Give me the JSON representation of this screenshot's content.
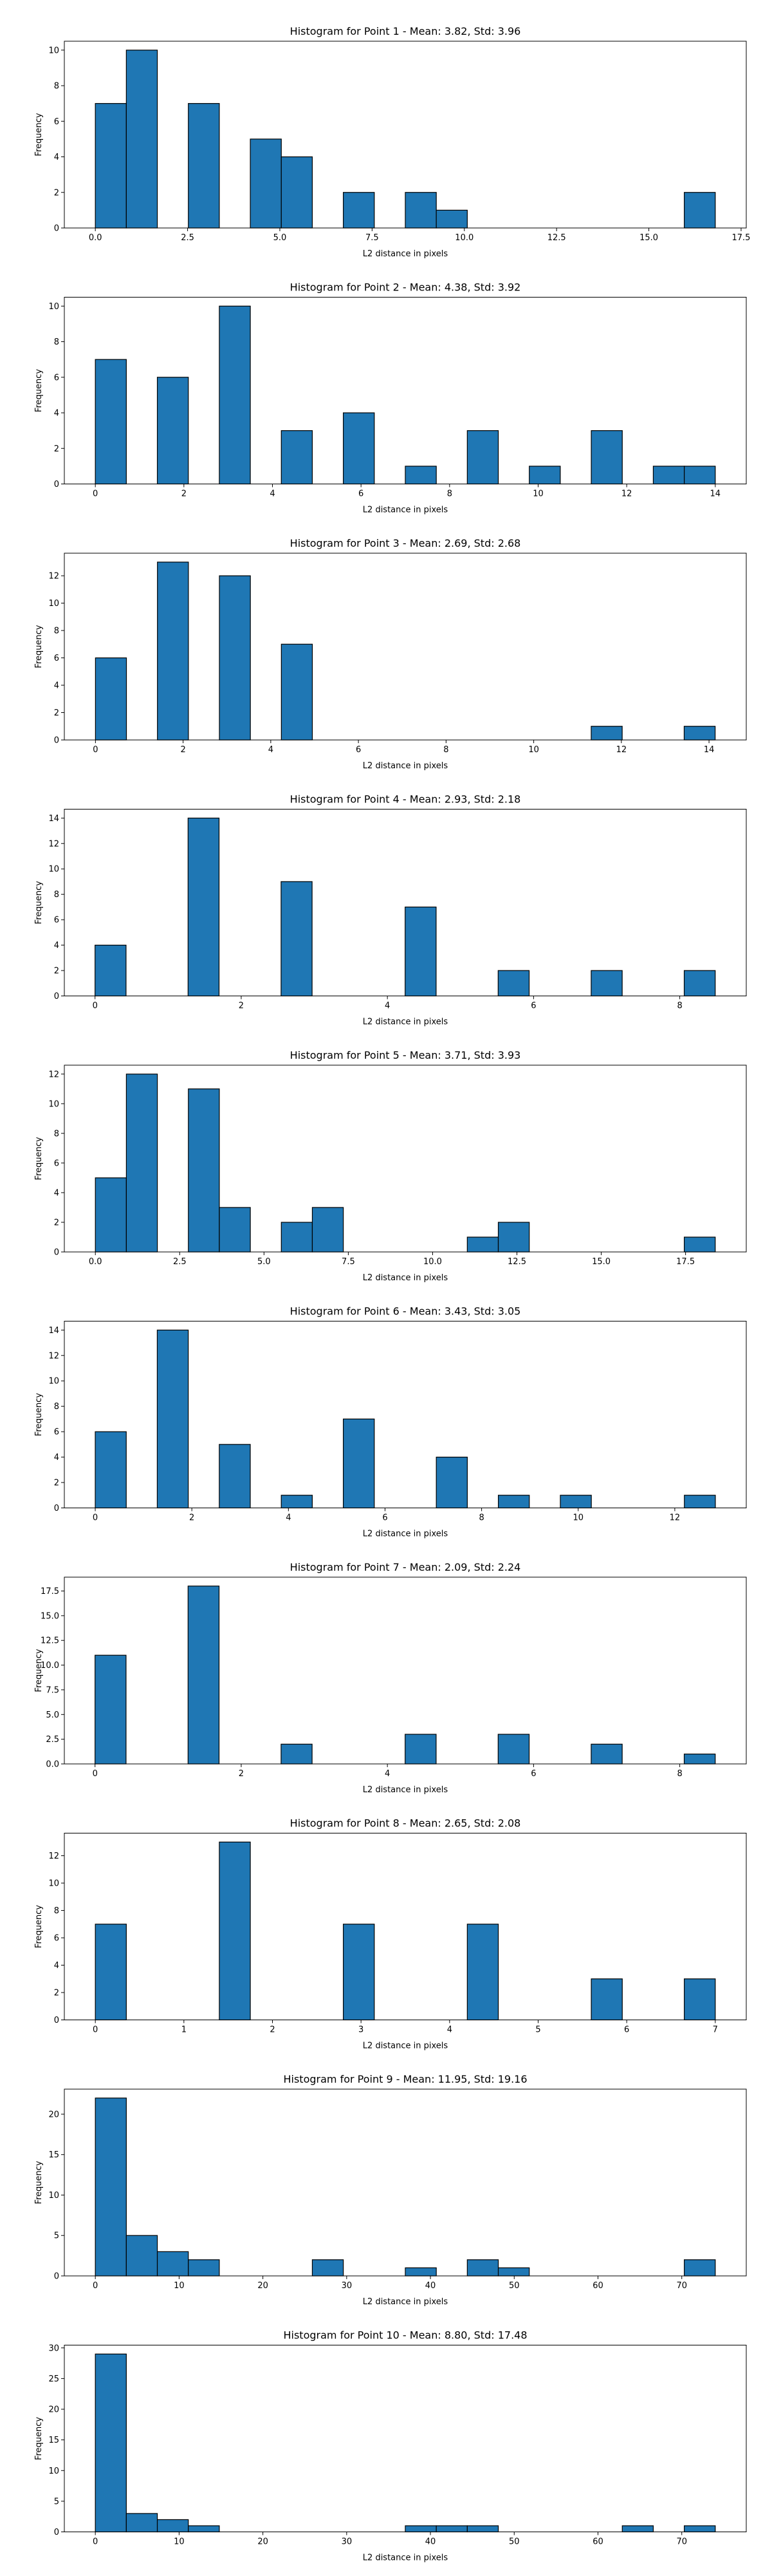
{
  "figure": {
    "background": "#ffffff",
    "bar_color": "#1f77b4",
    "edge_color": "#000000"
  },
  "chart_data": [
    {
      "type": "bar",
      "title": "Histogram for Point 1 - Mean: 3.82, Std: 3.96",
      "xlabel": "L2 distance in pixels",
      "ylabel": "Frequency",
      "xlim": [
        -0.84,
        17.64
      ],
      "ylim": [
        0,
        10.5
      ],
      "xticks": [
        0,
        2.5,
        5,
        7.5,
        10,
        12.5,
        15,
        17.5
      ],
      "xtick_labels": [
        "0.0",
        "2.5",
        "5.0",
        "7.5",
        "10.0",
        "12.5",
        "15.0",
        "17.5"
      ],
      "yticks": [
        0,
        2,
        4,
        6,
        8,
        10
      ],
      "bin_edges": [
        0,
        0.84,
        1.68,
        2.52,
        3.36,
        4.2,
        5.04,
        5.88,
        6.72,
        7.56,
        8.4,
        9.24,
        10.08,
        10.92,
        11.76,
        12.6,
        13.44,
        14.28,
        15.12,
        15.96,
        16.8
      ],
      "counts": [
        7,
        10,
        0,
        7,
        0,
        5,
        4,
        0,
        2,
        0,
        2,
        1,
        0,
        0,
        0,
        0,
        0,
        0,
        0,
        2
      ]
    },
    {
      "type": "bar",
      "title": "Histogram for Point 2 - Mean: 4.38, Std: 3.92",
      "xlabel": "L2 distance in pixels",
      "ylabel": "Frequency",
      "xlim": [
        -0.7,
        14.7
      ],
      "ylim": [
        0,
        10.5
      ],
      "xticks": [
        0,
        2,
        4,
        6,
        8,
        10,
        12,
        14
      ],
      "xtick_labels": [
        "0",
        "2",
        "4",
        "6",
        "8",
        "10",
        "12",
        "14"
      ],
      "yticks": [
        0,
        2,
        4,
        6,
        8,
        10
      ],
      "bin_edges": [
        0,
        0.7,
        1.4,
        2.1,
        2.8,
        3.5,
        4.2,
        4.9,
        5.6,
        6.3,
        7,
        7.7,
        8.4,
        9.1,
        9.8,
        10.5,
        11.2,
        11.9,
        12.6,
        13.3,
        14
      ],
      "counts": [
        7,
        0,
        6,
        0,
        10,
        0,
        3,
        0,
        4,
        0,
        1,
        0,
        3,
        0,
        1,
        0,
        3,
        0,
        1,
        1
      ]
    },
    {
      "type": "bar",
      "title": "Histogram for Point 3 - Mean: 2.69, Std: 2.68",
      "xlabel": "L2 distance in pixels",
      "ylabel": "Frequency",
      "xlim": [
        -0.71,
        14.85
      ],
      "ylim": [
        0,
        13.65
      ],
      "xticks": [
        0,
        2,
        4,
        6,
        8,
        10,
        12,
        14
      ],
      "xtick_labels": [
        "0",
        "2",
        "4",
        "6",
        "8",
        "10",
        "12",
        "14"
      ],
      "yticks": [
        0,
        2,
        4,
        6,
        8,
        10,
        12
      ],
      "bin_edges": [
        0,
        0.707,
        1.414,
        2.121,
        2.828,
        3.535,
        4.242,
        4.949,
        5.656,
        6.363,
        7.07,
        7.777,
        8.484,
        9.191,
        9.898,
        10.605,
        11.312,
        12.019,
        12.726,
        13.433,
        14.14
      ],
      "counts": [
        6,
        0,
        13,
        0,
        12,
        0,
        7,
        0,
        0,
        0,
        0,
        0,
        0,
        0,
        0,
        0,
        1,
        0,
        0,
        1
      ]
    },
    {
      "type": "bar",
      "title": "Histogram for Point 4 - Mean: 2.93, Std: 2.18",
      "xlabel": "L2 distance in pixels",
      "ylabel": "Frequency",
      "xlim": [
        -0.42,
        8.91
      ],
      "ylim": [
        0,
        14.7
      ],
      "xticks": [
        0,
        2,
        4,
        6,
        8
      ],
      "xtick_labels": [
        "0",
        "2",
        "4",
        "6",
        "8"
      ],
      "yticks": [
        0,
        2,
        4,
        6,
        8,
        10,
        12,
        14
      ],
      "bin_edges": [
        0,
        0.4243,
        0.8485,
        1.2728,
        1.697,
        2.1213,
        2.5456,
        2.9698,
        3.3941,
        3.8184,
        4.2426,
        4.6669,
        5.0912,
        5.5154,
        5.9397,
        6.364,
        6.7882,
        7.2125,
        7.6368,
        8.061,
        8.4853
      ],
      "counts": [
        4,
        0,
        0,
        14,
        0,
        0,
        9,
        0,
        0,
        0,
        7,
        0,
        0,
        2,
        0,
        0,
        2,
        0,
        0,
        2
      ]
    },
    {
      "type": "bar",
      "title": "Histogram for Point 5 - Mean: 3.71, Std: 3.93",
      "xlabel": "L2 distance in pixels",
      "ylabel": "Frequency",
      "xlim": [
        -0.92,
        19.3
      ],
      "ylim": [
        0,
        12.6
      ],
      "xticks": [
        0,
        2.5,
        5,
        7.5,
        10,
        12.5,
        15,
        17.5
      ],
      "xtick_labels": [
        "0.0",
        "2.5",
        "5.0",
        "7.5",
        "10.0",
        "12.5",
        "15.0",
        "17.5"
      ],
      "yticks": [
        0,
        2,
        4,
        6,
        8,
        10,
        12
      ],
      "bin_edges": [
        0,
        0.919,
        1.838,
        2.757,
        3.676,
        4.595,
        5.514,
        6.433,
        7.352,
        8.271,
        9.19,
        10.109,
        11.028,
        11.947,
        12.866,
        13.785,
        14.704,
        15.623,
        16.542,
        17.461,
        18.38
      ],
      "counts": [
        5,
        12,
        0,
        11,
        3,
        0,
        2,
        3,
        0,
        0,
        0,
        0,
        1,
        2,
        0,
        0,
        0,
        0,
        0,
        1
      ]
    },
    {
      "type": "bar",
      "title": "Histogram for Point 6 - Mean: 3.43, Std: 3.05",
      "xlabel": "L2 distance in pixels",
      "ylabel": "Frequency",
      "xlim": [
        -0.64,
        13.48
      ],
      "ylim": [
        0,
        14.7
      ],
      "xticks": [
        0,
        2,
        4,
        6,
        8,
        10,
        12
      ],
      "xtick_labels": [
        "0",
        "2",
        "4",
        "6",
        "8",
        "10",
        "12"
      ],
      "yticks": [
        0,
        2,
        4,
        6,
        8,
        10,
        12,
        14
      ],
      "bin_edges": [
        0,
        0.642,
        1.284,
        1.926,
        2.568,
        3.21,
        3.852,
        4.494,
        5.136,
        5.778,
        6.42,
        7.062,
        7.704,
        8.346,
        8.988,
        9.63,
        10.272,
        10.914,
        11.556,
        12.198,
        12.84
      ],
      "counts": [
        6,
        0,
        14,
        0,
        5,
        0,
        1,
        0,
        7,
        0,
        0,
        4,
        0,
        1,
        0,
        1,
        0,
        0,
        0,
        1
      ]
    },
    {
      "type": "bar",
      "title": "Histogram for Point 7 - Mean: 2.09, Std: 2.24",
      "xlabel": "L2 distance in pixels",
      "ylabel": "Frequency",
      "xlim": [
        -0.42,
        8.91
      ],
      "ylim": [
        0,
        18.9
      ],
      "xticks": [
        0,
        2,
        4,
        6,
        8
      ],
      "xtick_labels": [
        "0",
        "2",
        "4",
        "6",
        "8"
      ],
      "yticks": [
        0,
        2.5,
        5,
        7.5,
        10,
        12.5,
        15,
        17.5
      ],
      "ytick_labels": [
        "0.0",
        "2.5",
        "5.0",
        "7.5",
        "10.0",
        "12.5",
        "15.0",
        "17.5"
      ],
      "bin_edges": [
        0,
        0.4243,
        0.8485,
        1.2728,
        1.697,
        2.1213,
        2.5456,
        2.9698,
        3.3941,
        3.8184,
        4.2426,
        4.6669,
        5.0912,
        5.5154,
        5.9397,
        6.364,
        6.7882,
        7.2125,
        7.6368,
        8.061,
        8.4853
      ],
      "counts": [
        11,
        0,
        0,
        18,
        0,
        0,
        2,
        0,
        0,
        0,
        3,
        0,
        0,
        3,
        0,
        0,
        2,
        0,
        0,
        1
      ]
    },
    {
      "type": "bar",
      "title": "Histogram for Point 8 - Mean: 2.65, Std: 2.08",
      "xlabel": "L2 distance in pixels",
      "ylabel": "Frequency",
      "xlim": [
        -0.35,
        7.35
      ],
      "ylim": [
        0,
        13.65
      ],
      "xticks": [
        0,
        1,
        2,
        3,
        4,
        5,
        6,
        7
      ],
      "xtick_labels": [
        "0",
        "1",
        "2",
        "3",
        "4",
        "5",
        "6",
        "7"
      ],
      "yticks": [
        0,
        2,
        4,
        6,
        8,
        10,
        12
      ],
      "bin_edges": [
        0,
        0.35,
        0.7,
        1.05,
        1.4,
        1.75,
        2.1,
        2.45,
        2.8,
        3.15,
        3.5,
        3.85,
        4.2,
        4.55,
        4.9,
        5.25,
        5.6,
        5.95,
        6.3,
        6.65,
        7
      ],
      "counts": [
        7,
        0,
        0,
        0,
        13,
        0,
        0,
        0,
        7,
        0,
        0,
        0,
        7,
        0,
        0,
        0,
        3,
        0,
        0,
        3
      ]
    },
    {
      "type": "bar",
      "title": "Histogram for Point 9 - Mean: 11.95, Std: 19.16",
      "xlabel": "L2 distance in pixels",
      "ylabel": "Frequency",
      "xlim": [
        -3.7,
        77.7
      ],
      "ylim": [
        0,
        23.1
      ],
      "xticks": [
        0,
        10,
        20,
        30,
        40,
        50,
        60,
        70
      ],
      "xtick_labels": [
        "0",
        "10",
        "20",
        "30",
        "40",
        "50",
        "60",
        "70"
      ],
      "yticks": [
        0,
        5,
        10,
        15,
        20
      ],
      "bin_edges": [
        0,
        3.7,
        7.4,
        11.1,
        14.8,
        18.5,
        22.2,
        25.9,
        29.6,
        33.3,
        37,
        40.7,
        44.4,
        48.1,
        51.8,
        55.5,
        59.2,
        62.9,
        66.6,
        70.3,
        74
      ],
      "counts": [
        22,
        5,
        3,
        2,
        0,
        0,
        0,
        2,
        0,
        0,
        1,
        0,
        2,
        1,
        0,
        0,
        0,
        0,
        0,
        2
      ]
    },
    {
      "type": "bar",
      "title": "Histogram for Point 10 - Mean: 8.80, Std: 17.48",
      "xlabel": "L2 distance in pixels",
      "ylabel": "Frequency",
      "xlim": [
        -3.7,
        77.7
      ],
      "ylim": [
        0,
        30.45
      ],
      "xticks": [
        0,
        10,
        20,
        30,
        40,
        50,
        60,
        70
      ],
      "xtick_labels": [
        "0",
        "10",
        "20",
        "30",
        "40",
        "50",
        "60",
        "70"
      ],
      "yticks": [
        0,
        5,
        10,
        15,
        20,
        25,
        30
      ],
      "bin_edges": [
        0,
        3.7,
        7.4,
        11.1,
        14.8,
        18.5,
        22.2,
        25.9,
        29.6,
        33.3,
        37,
        40.7,
        44.4,
        48.1,
        51.8,
        55.5,
        59.2,
        62.9,
        66.6,
        70.3,
        74
      ],
      "counts": [
        29,
        3,
        2,
        1,
        0,
        0,
        0,
        0,
        0,
        0,
        1,
        1,
        1,
        0,
        0,
        0,
        0,
        1,
        0,
        1
      ]
    }
  ]
}
